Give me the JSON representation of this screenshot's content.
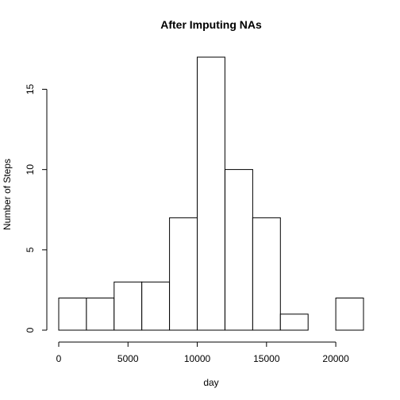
{
  "chart_data": {
    "type": "bar",
    "title": "After Imputing NAs",
    "xlabel": "day",
    "ylabel": "Number of Steps",
    "bins": [
      {
        "from": 0,
        "to": 2000,
        "count": 2
      },
      {
        "from": 2000,
        "to": 4000,
        "count": 2
      },
      {
        "from": 4000,
        "to": 6000,
        "count": 3
      },
      {
        "from": 6000,
        "to": 8000,
        "count": 3
      },
      {
        "from": 8000,
        "to": 10000,
        "count": 7
      },
      {
        "from": 10000,
        "to": 12000,
        "count": 17
      },
      {
        "from": 12000,
        "to": 14000,
        "count": 10
      },
      {
        "from": 14000,
        "to": 16000,
        "count": 7
      },
      {
        "from": 16000,
        "to": 18000,
        "count": 1
      },
      {
        "from": 18000,
        "to": 20000,
        "count": 0
      },
      {
        "from": 20000,
        "to": 22000,
        "count": 2
      }
    ],
    "xlim": [
      0,
      22000
    ],
    "ylim": [
      0,
      17
    ],
    "x_ticks": [
      "0",
      "5000",
      "10000",
      "15000",
      "20000"
    ],
    "y_ticks": [
      "0",
      "5",
      "10",
      "15"
    ],
    "grid": false,
    "legend": "none"
  }
}
